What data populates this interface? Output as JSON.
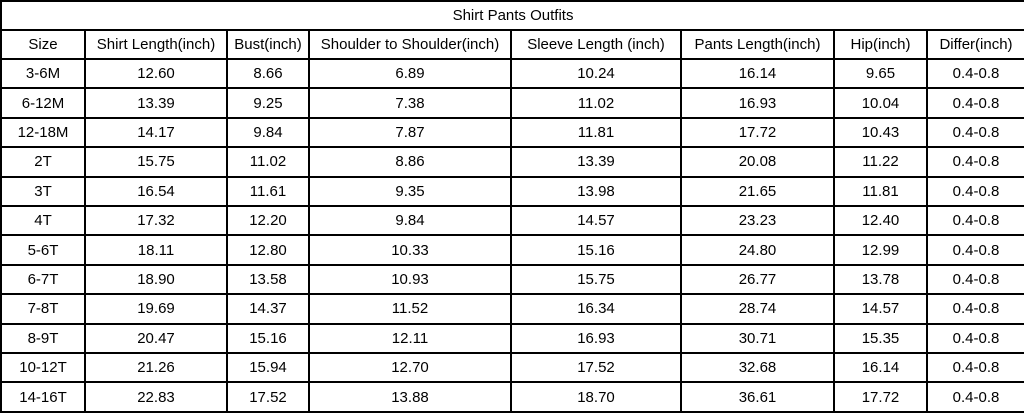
{
  "chart_data": {
    "type": "table",
    "title": "Shirt Pants Outfits",
    "columns": [
      "Size",
      "Shirt Length(inch)",
      "Bust(inch)",
      "Shoulder to Shoulder(inch)",
      "Sleeve Length (inch)",
      "Pants Length(inch)",
      "Hip(inch)",
      "Differ(inch)"
    ],
    "rows": [
      [
        "3-6M",
        "12.60",
        "8.66",
        "6.89",
        "10.24",
        "16.14",
        "9.65",
        "0.4-0.8"
      ],
      [
        "6-12M",
        "13.39",
        "9.25",
        "7.38",
        "11.02",
        "16.93",
        "10.04",
        "0.4-0.8"
      ],
      [
        "12-18M",
        "14.17",
        "9.84",
        "7.87",
        "11.81",
        "17.72",
        "10.43",
        "0.4-0.8"
      ],
      [
        "2T",
        "15.75",
        "11.02",
        "8.86",
        "13.39",
        "20.08",
        "11.22",
        "0.4-0.8"
      ],
      [
        "3T",
        "16.54",
        "11.61",
        "9.35",
        "13.98",
        "21.65",
        "11.81",
        "0.4-0.8"
      ],
      [
        "4T",
        "17.32",
        "12.20",
        "9.84",
        "14.57",
        "23.23",
        "12.40",
        "0.4-0.8"
      ],
      [
        "5-6T",
        "18.11",
        "12.80",
        "10.33",
        "15.16",
        "24.80",
        "12.99",
        "0.4-0.8"
      ],
      [
        "6-7T",
        "18.90",
        "13.58",
        "10.93",
        "15.75",
        "26.77",
        "13.78",
        "0.4-0.8"
      ],
      [
        "7-8T",
        "19.69",
        "14.37",
        "11.52",
        "16.34",
        "28.74",
        "14.57",
        "0.4-0.8"
      ],
      [
        "8-9T",
        "20.47",
        "15.16",
        "12.11",
        "16.93",
        "30.71",
        "15.35",
        "0.4-0.8"
      ],
      [
        "10-12T",
        "21.26",
        "15.94",
        "12.70",
        "17.52",
        "32.68",
        "16.14",
        "0.4-0.8"
      ],
      [
        "14-16T",
        "22.83",
        "17.52",
        "13.88",
        "18.70",
        "36.61",
        "17.72",
        "0.4-0.8"
      ]
    ],
    "grid": true,
    "text_color": "#000000",
    "border_color": "#000000",
    "background_color": "#ffffff"
  }
}
